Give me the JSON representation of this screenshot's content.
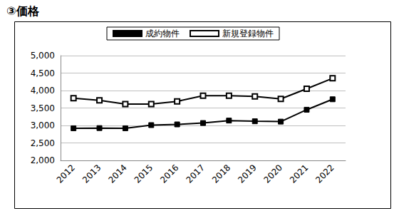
{
  "chart_data": {
    "type": "line",
    "title": "③価格",
    "categories": [
      "2012",
      "2013",
      "2014",
      "2015",
      "2016",
      "2017",
      "2018",
      "2019",
      "2020",
      "2021",
      "2022"
    ],
    "series": [
      {
        "name": "成約物件",
        "color": "#000000",
        "marker": "square",
        "values": [
          2920,
          2925,
          2920,
          3010,
          3030,
          3070,
          3140,
          3120,
          3110,
          3450,
          3750
        ]
      },
      {
        "name": "新規登録物件",
        "color": "#000000",
        "marker": "square_empty",
        "values": [
          3780,
          3720,
          3610,
          3610,
          3690,
          3850,
          3850,
          3830,
          3760,
          4050,
          4350
        ]
      }
    ],
    "ylim": [
      2000,
      5000
    ],
    "yticks": [
      {
        "value": 2000,
        "label": "2,000"
      },
      {
        "value": 2500,
        "label": "2,500"
      },
      {
        "value": 3000,
        "label": "3,000"
      },
      {
        "value": 3500,
        "label": "3,500"
      },
      {
        "value": 4000,
        "label": "4,000"
      },
      {
        "value": 4500,
        "label": "4,500"
      },
      {
        "value": 5000,
        "label": "5,000"
      }
    ],
    "grid": true,
    "legend": "top"
  }
}
